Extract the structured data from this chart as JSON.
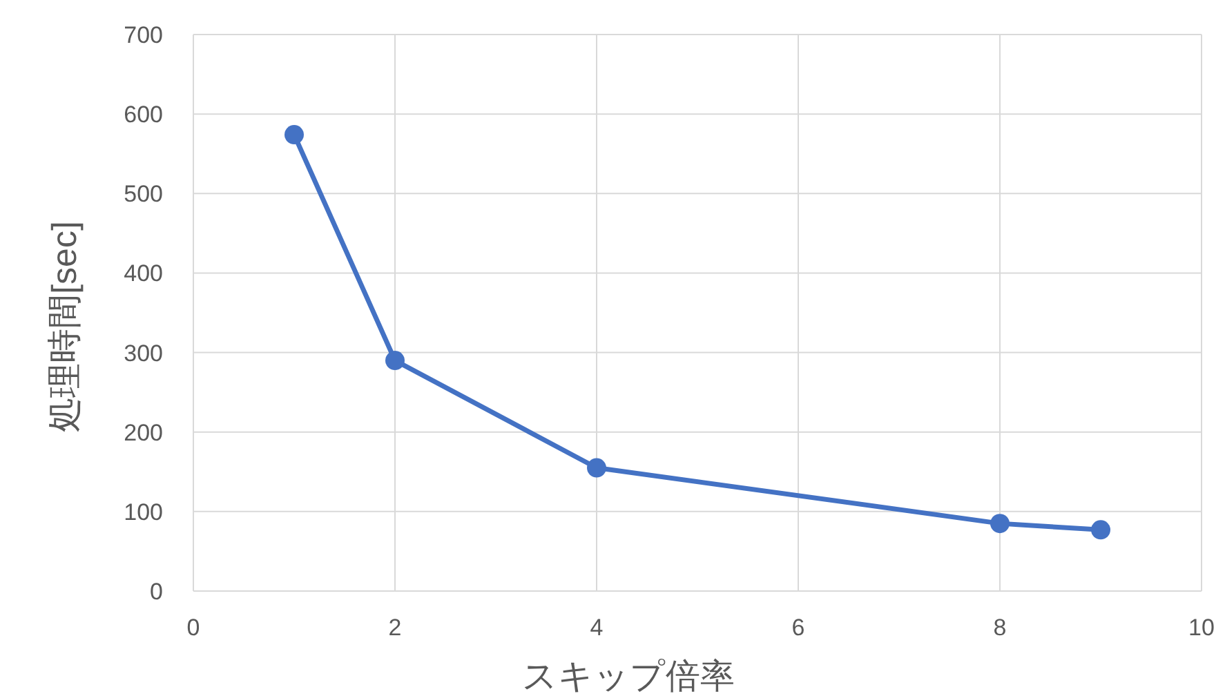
{
  "chart_data": {
    "type": "line",
    "xlabel": "スキップ倍率",
    "ylabel": "処理時間[sec]",
    "x": [
      1,
      2,
      4,
      8,
      9
    ],
    "series": [
      {
        "color": "#4472c4",
        "values": [
          574,
          290,
          155,
          85,
          77
        ]
      }
    ],
    "xlim": [
      0,
      10
    ],
    "xticks": [
      0,
      2,
      4,
      6,
      8,
      10
    ],
    "ylim": [
      0,
      700
    ],
    "yticks": [
      0,
      100,
      200,
      300,
      400,
      500,
      600,
      700
    ],
    "grid": true,
    "marker": "circle",
    "line_style": "solid"
  }
}
